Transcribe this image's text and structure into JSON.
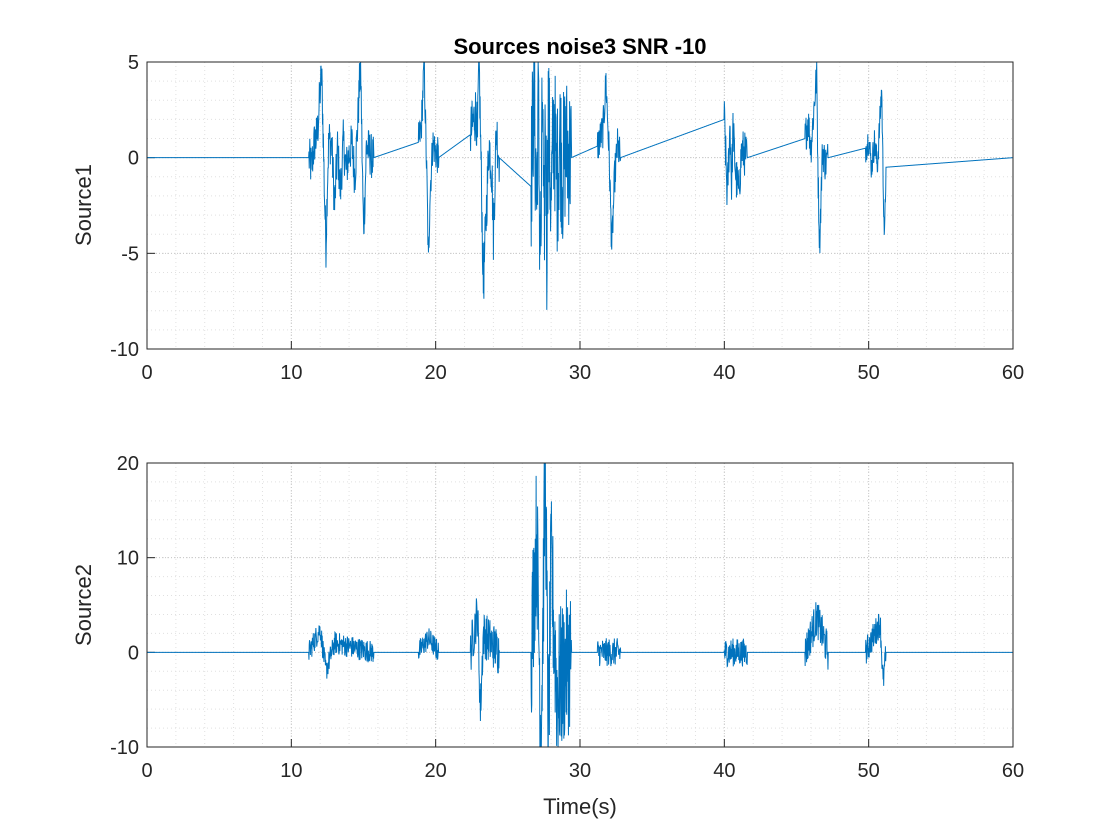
{
  "chart_data": [
    {
      "type": "line",
      "title": "Sources noise3 SNR -10",
      "xlabel": "",
      "ylabel": "Source1",
      "xlim": [
        0,
        60
      ],
      "ylim": [
        -10,
        5
      ],
      "xticks": [
        0,
        10,
        20,
        30,
        40,
        50,
        60
      ],
      "yticks": [
        -10,
        -5,
        0,
        5
      ],
      "grid": true,
      "minor_grid": true,
      "color": "#0072BD",
      "series": [
        {
          "x": [
            0,
            11.2,
            11.4,
            11.6,
            11.8,
            12.0,
            12.1,
            12.2,
            12.3,
            12.4,
            12.5,
            12.6,
            12.8,
            13.0,
            13.2,
            13.4,
            13.6,
            13.8,
            14.0,
            14.2,
            14.4,
            14.6,
            14.8,
            14.9,
            15.0,
            15.1,
            15.2,
            15.4,
            15.6,
            15.7,
            18.8,
            19.0,
            19.2,
            19.4,
            19.5,
            19.6,
            19.8,
            20.0,
            20.2,
            22.4,
            22.6,
            22.8,
            22.9,
            23.0,
            23.1,
            23.2,
            23.3,
            23.5,
            23.7,
            23.9,
            24.0,
            24.2,
            24.4,
            26.6,
            26.8,
            27.0,
            27.1,
            27.2,
            27.3,
            27.4,
            27.5,
            27.6,
            27.7,
            27.8,
            28.0,
            28.2,
            28.4,
            28.6,
            28.8,
            29.0,
            29.2,
            29.4,
            31.2,
            31.4,
            31.6,
            31.8,
            32.0,
            32.1,
            32.2,
            32.4,
            32.6,
            32.8,
            40.0,
            40.2,
            40.4,
            40.5,
            40.6,
            40.8,
            41.0,
            41.2,
            41.4,
            41.6,
            45.6,
            45.8,
            46.0,
            46.2,
            46.4,
            46.5,
            46.6,
            46.8,
            47.0,
            47.2,
            49.8,
            50.0,
            50.2,
            50.4,
            50.6,
            50.8,
            50.9,
            51.0,
            51.1,
            51.2,
            60
          ],
          "y": [
            0,
            0,
            -0.5,
            0.8,
            1.2,
            3.5,
            4.4,
            1.5,
            -2.0,
            -4.6,
            -1.2,
            1.0,
            0.6,
            -2.5,
            0.5,
            -1.8,
            0.8,
            -0.6,
            0.2,
            0.7,
            -1.0,
            1.8,
            5.1,
            0.3,
            -3.8,
            -2.0,
            0.6,
            0.3,
            0.0,
            0,
            0.8,
            1.5,
            4.9,
            -1.5,
            -5.6,
            -2.0,
            0.8,
            0.3,
            0,
            1.2,
            1.8,
            2.5,
            0.8,
            5.6,
            1.5,
            -2.5,
            -6.8,
            -3.0,
            0.8,
            -0.8,
            -4.0,
            1.5,
            0,
            -1.5,
            3.5,
            -2.5,
            3.8,
            -3.0,
            -4.5,
            3.8,
            -5.8,
            2.8,
            -4.5,
            2.5,
            -2.5,
            2.0,
            -1.5,
            1.2,
            -0.8,
            0.6,
            0.3,
            0,
            0.6,
            1.0,
            1.5,
            4.0,
            0.5,
            -2.0,
            -4.8,
            -1.0,
            0.6,
            0,
            2.0,
            -2.0,
            1.8,
            -1.5,
            1.5,
            -1.0,
            -1.8,
            0.4,
            0.2,
            0,
            1.0,
            2.0,
            0.5,
            2.5,
            4.4,
            -1.2,
            -4.5,
            0.4,
            -0.3,
            0,
            0.5,
            1.0,
            -0.5,
            0.8,
            -0.4,
            2.2,
            3.7,
            -1.0,
            -4.4,
            -0.5,
            0
          ],
          "noisy_segments": [
            [
              11.2,
              15.7,
              1.2
            ],
            [
              18.8,
              20.2,
              1.0
            ],
            [
              22.4,
              24.4,
              1.5
            ],
            [
              26.6,
              29.4,
              4.0
            ],
            [
              31.2,
              32.8,
              1.0
            ],
            [
              40.0,
              41.6,
              1.2
            ],
            [
              45.6,
              47.2,
              1.0
            ],
            [
              49.8,
              51.2,
              0.8
            ]
          ]
        }
      ]
    },
    {
      "type": "line",
      "title": "",
      "xlabel": "Time(s)",
      "ylabel": "Source2",
      "xlim": [
        0,
        60
      ],
      "ylim": [
        -10,
        20
      ],
      "xticks": [
        0,
        10,
        20,
        30,
        40,
        50,
        60
      ],
      "yticks": [
        -10,
        0,
        10,
        20
      ],
      "grid": true,
      "minor_grid": true,
      "color": "#0072BD",
      "series": [
        {
          "x": [
            0,
            11.2,
            12.0,
            12.4,
            13.0,
            15.7,
            18.8,
            19.5,
            20.2,
            22.4,
            22.9,
            23.1,
            23.3,
            24.4,
            26.6,
            27.0,
            27.3,
            27.6,
            27.8,
            28.0,
            28.4,
            29.4,
            31.2,
            32.8,
            40.0,
            41.6,
            45.6,
            46.4,
            47.2,
            49.8,
            50.8,
            51.0,
            51.2,
            60
          ],
          "y": [
            0,
            0,
            2.5,
            -2.0,
            1.0,
            0,
            0,
            1.5,
            0,
            0,
            4.3,
            -6.2,
            2.0,
            0,
            0,
            12.8,
            -9.0,
            20.0,
            -9.5,
            9.0,
            -4.0,
            0,
            0,
            0,
            0,
            0,
            0,
            3.7,
            0,
            0,
            3.2,
            -3.3,
            0,
            0
          ],
          "noisy_segments": [
            [
              11.2,
              15.7,
              1.2
            ],
            [
              18.8,
              20.2,
              1.2
            ],
            [
              22.4,
              24.4,
              2.5
            ],
            [
              26.6,
              29.4,
              8.0
            ],
            [
              31.2,
              32.8,
              1.5
            ],
            [
              40.0,
              41.6,
              1.5
            ],
            [
              45.6,
              47.2,
              2.0
            ],
            [
              49.8,
              51.2,
              1.5
            ]
          ]
        }
      ]
    }
  ]
}
